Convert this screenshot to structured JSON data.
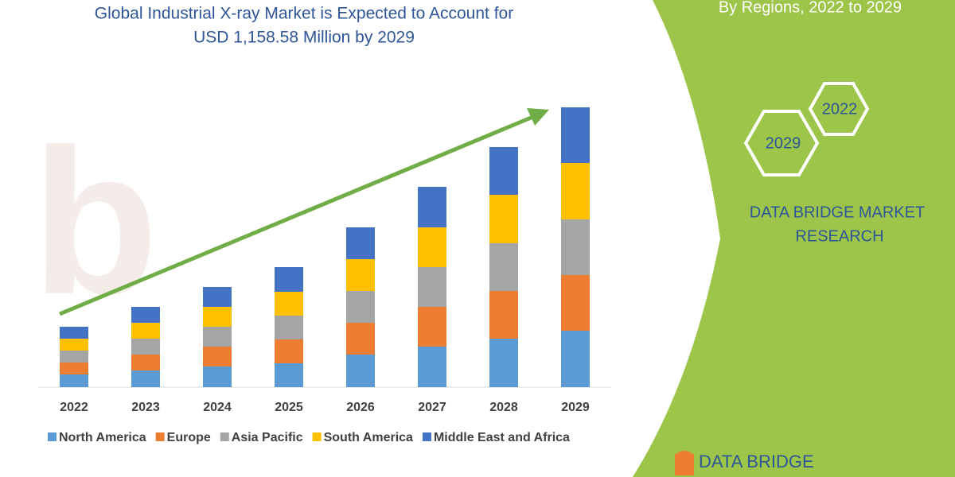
{
  "chart_data": {
    "type": "bar",
    "stacked": true,
    "title": "Global Industrial X-ray Market is Expected to Account for",
    "subtitle": "USD 1,158.58 Million by 2029",
    "categories": [
      "2022",
      "2023",
      "2024",
      "2025",
      "2026",
      "2027",
      "2028",
      "2029"
    ],
    "series": [
      {
        "name": "North America",
        "color": "#5b9bd5",
        "values": [
          16,
          21,
          26,
          30,
          41,
          51,
          61,
          71
        ]
      },
      {
        "name": "Europe",
        "color": "#ed7d31",
        "values": [
          15,
          20,
          25,
          30,
          40,
          50,
          60,
          70
        ]
      },
      {
        "name": "Asia Pacific",
        "color": "#a5a5a5",
        "values": [
          15,
          20,
          25,
          30,
          40,
          50,
          60,
          70
        ]
      },
      {
        "name": "South America",
        "color": "#ffc000",
        "values": [
          15,
          20,
          25,
          30,
          40,
          50,
          61,
          71
        ]
      },
      {
        "name": "Middle East and Africa",
        "color": "#4472c4",
        "values": [
          15,
          20,
          25,
          31,
          40,
          51,
          60,
          70
        ]
      }
    ],
    "ylim": [
      0,
      360
    ]
  },
  "side_panel": {
    "heading": "By Regions, 2022 to 2029",
    "hexagons": [
      "2022",
      "2029"
    ],
    "brand": [
      "DATA BRIDGE MARKET",
      "RESEARCH"
    ],
    "logo": "DATA BRIDGE"
  }
}
